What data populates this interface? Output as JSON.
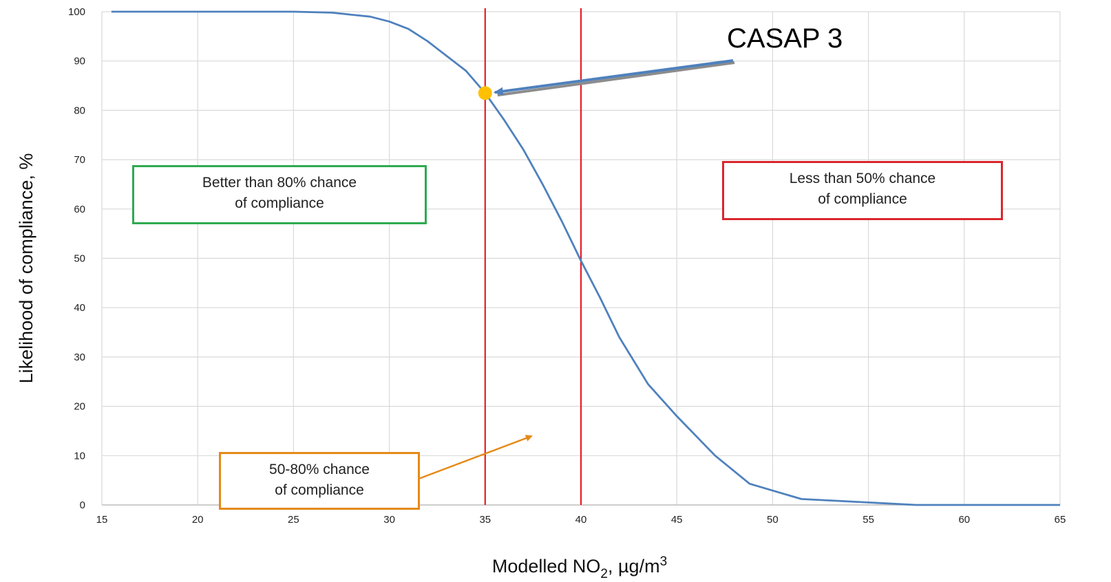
{
  "chart_data": {
    "type": "line",
    "title": "",
    "xlabel_main": "Modelled NO",
    "xlabel_sub": "2",
    "xlabel_rest": ", µg/m",
    "xlabel_sup": "3",
    "ylabel": "Likelihood of compliance, %",
    "xlim": [
      15,
      65
    ],
    "ylim": [
      0,
      100
    ],
    "x_ticks": [
      "15",
      "20",
      "25",
      "30",
      "35",
      "40",
      "45",
      "50",
      "55",
      "60",
      "65"
    ],
    "y_ticks": [
      "0",
      "10",
      "20",
      "30",
      "40",
      "50",
      "60",
      "70",
      "80",
      "90",
      "100"
    ],
    "grid": true,
    "series": [
      {
        "x": [
          15.5,
          20,
          25,
          27,
          29,
          30,
          31,
          32,
          33,
          34,
          35,
          36,
          37,
          38,
          39,
          40,
          41,
          42,
          43.5,
          45,
          47,
          48.8,
          51.5,
          55,
          57.5,
          60,
          65
        ],
        "y": [
          100,
          100,
          100,
          99.8,
          99,
          98,
          96.5,
          94,
          91,
          88,
          83.5,
          78,
          72,
          65,
          57.5,
          49.5,
          42,
          34,
          24.5,
          18,
          10,
          4.3,
          1.2,
          0.5,
          0,
          0,
          0
        ],
        "color": "#4f81bd"
      }
    ],
    "vertical_lines": [
      {
        "x": 35,
        "color": "#e81b23"
      },
      {
        "x": 40,
        "color": "#e81b23"
      }
    ],
    "highlight_point": {
      "x": 35,
      "y": 83.5,
      "color": "#ffc000"
    },
    "annotations": {
      "casap": {
        "text": "CASAP 3",
        "arrow_color": "#4f81bd"
      },
      "green": {
        "line1": "Better than 80% chance",
        "line2": "of compliance",
        "color": "#2eaa4f"
      },
      "red": {
        "line1": "Less than 50% chance",
        "line2": "of compliance",
        "color": "#d9262d"
      },
      "orange": {
        "line1": "50-80% chance",
        "line2": "of compliance",
        "color": "#e58a18"
      }
    }
  }
}
